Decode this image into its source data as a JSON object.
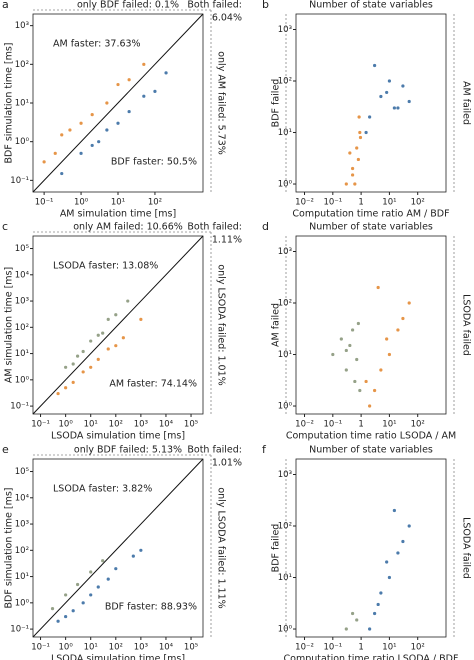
{
  "chart_data": [
    {
      "type": "scatter",
      "label": "a",
      "xlabel": "AM simulation time [ms]",
      "ylabel": "BDF simulation time [ms]",
      "xscale": "log",
      "yscale": "log",
      "diagonal": true,
      "xlim": [
        0.05,
        2000
      ],
      "ylim": [
        0.05,
        2000
      ],
      "xticks": [
        {
          "value": 0.1,
          "label": "10⁻¹"
        },
        {
          "value": 1,
          "label": "10⁰"
        },
        {
          "value": 10,
          "label": "10¹"
        },
        {
          "value": 100,
          "label": "10²"
        }
      ],
      "yticks": [
        {
          "value": 0.1,
          "label": "10⁻¹"
        },
        {
          "value": 1,
          "label": "10⁰"
        },
        {
          "value": 10,
          "label": "10¹"
        },
        {
          "value": 100,
          "label": "10²"
        },
        {
          "value": 1000,
          "label": "10³"
        }
      ],
      "annotations": [
        {
          "text": "only BDF failed: 0.1%",
          "color": "#222"
        },
        {
          "text": "Both failed:",
          "color": "#222"
        },
        {
          "text": "6.04%",
          "color": "#222"
        },
        {
          "text": "AM faster: 37.63%",
          "color": "#e07b1a"
        },
        {
          "text": "only AM failed: 5.73%",
          "color": "#222"
        },
        {
          "text": "BDF faster: 50.5%",
          "color": "#1f5a96"
        }
      ],
      "series": [
        {
          "color": "#e07b1a",
          "x": [
            0.1,
            0.2,
            0.5,
            1,
            2,
            5,
            10,
            20,
            50,
            0.3
          ],
          "values": [
            0.3,
            0.5,
            2,
            3,
            5,
            10,
            30,
            40,
            100,
            1.5
          ]
        },
        {
          "color": "#1f5a96",
          "x": [
            0.3,
            1,
            2,
            5,
            10,
            20,
            50,
            100,
            200,
            3
          ],
          "values": [
            0.15,
            0.5,
            0.8,
            2,
            3,
            6,
            15,
            20,
            60,
            1
          ]
        }
      ]
    },
    {
      "type": "scatter",
      "label": "b",
      "xlabel": "Computation time ratio AM / BDF",
      "ylabel": "Number of state variables",
      "xscale": "log",
      "yscale": "log",
      "diagonal": false,
      "xlim": [
        0.005,
        1000
      ],
      "ylim": [
        0.7,
        2000
      ],
      "xticks": [
        {
          "value": 0.01,
          "label": "10⁻²"
        },
        {
          "value": 0.1,
          "label": "10⁻¹"
        },
        1,
        {
          "value": 10,
          "label": "10¹"
        },
        {
          "value": 100,
          "label": "10²"
        }
      ],
      "yticks": [
        {
          "value": 1,
          "label": "10⁰"
        },
        {
          "value": 10,
          "label": "10¹"
        },
        {
          "value": 100,
          "label": "10²"
        },
        {
          "value": 1000,
          "label": "10³"
        }
      ],
      "annotations": [
        {
          "text": "BDF failed",
          "color": "#222"
        },
        {
          "text": "AM failed",
          "color": "#222"
        }
      ],
      "series": [
        {
          "color": "#e07b1a",
          "x": [
            0.3,
            0.5,
            0.7,
            0.8,
            0.5,
            0.9,
            0.6,
            0.4,
            0.85,
            0.95
          ],
          "values": [
            1,
            2,
            5,
            3,
            1.5,
            10,
            1,
            4,
            20,
            8
          ]
        },
        {
          "color": "#1f5a96",
          "x": [
            2,
            5,
            10,
            20,
            50,
            3,
            8,
            1.5,
            30,
            15
          ],
          "values": [
            20,
            50,
            100,
            30,
            40,
            200,
            60,
            10,
            80,
            30
          ]
        }
      ]
    },
    {
      "type": "scatter",
      "label": "c",
      "xlabel": "LSODA simulation time [ms]",
      "ylabel": "AM simulation time [ms]",
      "xscale": "log",
      "yscale": "log",
      "diagonal": true,
      "xlim": [
        0.05,
        300000
      ],
      "ylim": [
        0.05,
        300000
      ],
      "xticks": [
        {
          "value": 0.1,
          "label": "10⁻¹"
        },
        {
          "value": 1,
          "label": "10⁰"
        },
        {
          "value": 10,
          "label": "10¹"
        },
        {
          "value": 100,
          "label": "10²"
        },
        {
          "value": 1000,
          "label": "10³"
        },
        {
          "value": 10000,
          "label": "10⁴"
        },
        {
          "value": 100000,
          "label": "10⁵"
        }
      ],
      "yticks": [
        {
          "value": 0.1,
          "label": "10⁻¹"
        },
        {
          "value": 1,
          "label": "10⁰"
        },
        {
          "value": 10,
          "label": "10¹"
        },
        {
          "value": 100,
          "label": "10²"
        },
        {
          "value": 1000,
          "label": "10³"
        },
        {
          "value": 10000,
          "label": "10⁴"
        },
        {
          "value": 100000,
          "label": "10⁵"
        }
      ],
      "annotations": [
        {
          "text": "only AM failed: 10.66%",
          "color": "#222"
        },
        {
          "text": "Both failed:",
          "color": "#222"
        },
        {
          "text": "1.11%",
          "color": "#222"
        },
        {
          "text": "LSODA faster: 13.08%",
          "color": "#999"
        },
        {
          "text": "only LSODA failed: 1.01%",
          "color": "#222"
        },
        {
          "text": "AM faster: 74.14%",
          "color": "#e07b1a"
        }
      ],
      "series": [
        {
          "color": "#e07b1a",
          "x": [
            0.5,
            1,
            2,
            5,
            10,
            20,
            50,
            100,
            200,
            1000
          ],
          "values": [
            0.3,
            0.5,
            0.8,
            2,
            3,
            6,
            15,
            20,
            40,
            200
          ]
        },
        {
          "color": "#7a8a6a",
          "x": [
            1,
            3,
            10,
            30,
            100,
            2,
            20,
            5,
            50,
            300
          ],
          "values": [
            3,
            8,
            30,
            60,
            300,
            4,
            50,
            12,
            200,
            1000
          ]
        }
      ]
    },
    {
      "type": "scatter",
      "label": "d",
      "xlabel": "Computation time ratio LSODA / AM",
      "ylabel": "Number of state variables",
      "xscale": "log",
      "yscale": "log",
      "diagonal": false,
      "xlim": [
        0.005,
        1000
      ],
      "ylim": [
        0.7,
        2000
      ],
      "xticks": [
        {
          "value": 0.01,
          "label": "10⁻²"
        },
        {
          "value": 0.1,
          "label": "10⁻¹"
        },
        1,
        {
          "value": 10,
          "label": "10¹"
        },
        {
          "value": 100,
          "label": "10²"
        }
      ],
      "yticks": [
        {
          "value": 1,
          "label": "10⁰"
        },
        {
          "value": 10,
          "label": "10¹"
        },
        {
          "value": 100,
          "label": "10²"
        },
        {
          "value": 1000,
          "label": "10³"
        }
      ],
      "annotations": [
        {
          "text": "AM failed",
          "color": "#222"
        },
        {
          "text": "LSODA failed",
          "color": "#222"
        }
      ],
      "series": [
        {
          "color": "#e07b1a",
          "x": [
            2,
            3,
            5,
            10,
            20,
            50,
            1.5,
            8,
            30,
            4
          ],
          "values": [
            1,
            2,
            5,
            10,
            30,
            100,
            3,
            20,
            50,
            200
          ]
        },
        {
          "color": "#7a8a6a",
          "x": [
            0.1,
            0.2,
            0.3,
            0.5,
            0.7,
            0.4,
            0.6,
            0.8,
            0.9,
            0.3
          ],
          "values": [
            10,
            20,
            5,
            30,
            8,
            15,
            3,
            40,
            2,
            12
          ]
        }
      ]
    },
    {
      "type": "scatter",
      "label": "e",
      "xlabel": "LSODA simulation time [ms]",
      "ylabel": "BDF simulation time [ms]",
      "xscale": "log",
      "yscale": "log",
      "diagonal": true,
      "xlim": [
        0.05,
        300000
      ],
      "ylim": [
        0.05,
        300000
      ],
      "xticks": [
        {
          "value": 0.1,
          "label": "10⁻¹"
        },
        {
          "value": 1,
          "label": "10⁰"
        },
        {
          "value": 10,
          "label": "10¹"
        },
        {
          "value": 100,
          "label": "10²"
        },
        {
          "value": 1000,
          "label": "10³"
        },
        {
          "value": 10000,
          "label": "10⁴"
        },
        {
          "value": 100000,
          "label": "10⁵"
        }
      ],
      "yticks": [
        {
          "value": 0.1,
          "label": "10⁻¹"
        },
        {
          "value": 1,
          "label": "10⁰"
        },
        {
          "value": 10,
          "label": "10¹"
        },
        {
          "value": 100,
          "label": "10²"
        },
        {
          "value": 1000,
          "label": "10³"
        },
        {
          "value": 10000,
          "label": "10⁴"
        },
        {
          "value": 100000,
          "label": "10⁵"
        }
      ],
      "annotations": [
        {
          "text": "only BDF failed: 5.13%",
          "color": "#222"
        },
        {
          "text": "Both failed:",
          "color": "#222"
        },
        {
          "text": "1.01%",
          "color": "#222"
        },
        {
          "text": "LSODA faster: 3.82%",
          "color": "#999"
        },
        {
          "text": "only LSODA failed: 1.11%",
          "color": "#222"
        },
        {
          "text": "BDF faster: 88.93%",
          "color": "#1f5a96"
        }
      ],
      "series": [
        {
          "color": "#1f5a96",
          "x": [
            0.5,
            1,
            2,
            5,
            10,
            20,
            50,
            100,
            500,
            1000
          ],
          "values": [
            0.2,
            0.3,
            0.5,
            1,
            2,
            4,
            8,
            20,
            60,
            100
          ]
        },
        {
          "color": "#7a8a6a",
          "x": [
            0.3,
            1,
            3,
            10,
            30
          ],
          "values": [
            0.6,
            2,
            5,
            15,
            40
          ]
        }
      ]
    },
    {
      "type": "scatter",
      "label": "f",
      "xlabel": "Computation time ratio LSODA / BDF",
      "ylabel": "Number of state variables",
      "xscale": "log",
      "yscale": "log",
      "diagonal": false,
      "xlim": [
        0.005,
        1000
      ],
      "ylim": [
        0.7,
        2000
      ],
      "xticks": [
        {
          "value": 0.01,
          "label": "10⁻²"
        },
        {
          "value": 0.1,
          "label": "10⁻¹"
        },
        1,
        {
          "value": 10,
          "label": "10¹"
        },
        {
          "value": 100,
          "label": "10²"
        }
      ],
      "yticks": [
        {
          "value": 1,
          "label": "10⁰"
        },
        {
          "value": 10,
          "label": "10¹"
        },
        {
          "value": 100,
          "label": "10²"
        },
        {
          "value": 1000,
          "label": "10³"
        }
      ],
      "annotations": [
        {
          "text": "BDF failed",
          "color": "#222"
        },
        {
          "text": "LSODA failed",
          "color": "#222"
        }
      ],
      "series": [
        {
          "color": "#1f5a96",
          "x": [
            2,
            3,
            5,
            10,
            20,
            50,
            8,
            30,
            4,
            15
          ],
          "values": [
            1,
            2,
            5,
            10,
            30,
            100,
            20,
            50,
            3,
            200
          ]
        },
        {
          "color": "#7a8a6a",
          "x": [
            0.3,
            0.5,
            0.7
          ],
          "values": [
            1,
            2,
            1.5
          ]
        }
      ]
    }
  ]
}
